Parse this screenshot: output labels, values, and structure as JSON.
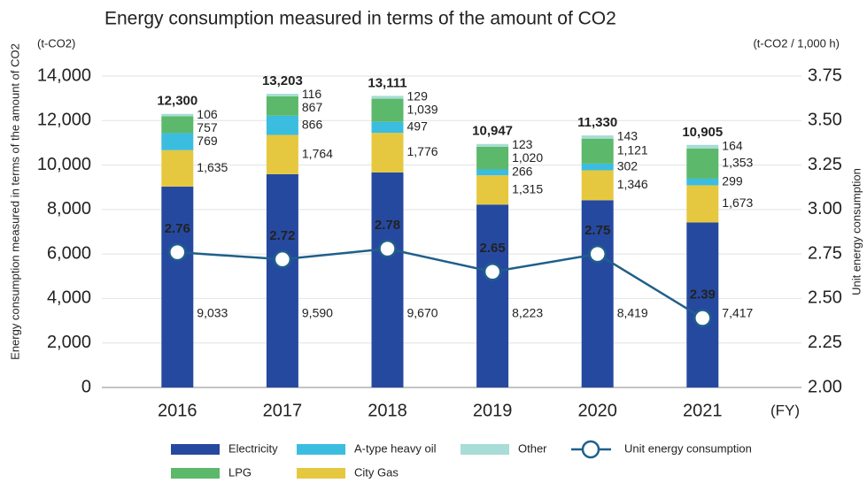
{
  "chart_data": {
    "type": "stacked-bar-line",
    "title": "Energy consumption measured in terms of the amount of CO2",
    "y_unit": "(t-CO2)",
    "y2_unit": "(t-CO2 / 1,000 h)",
    "x_unit": "(FY)",
    "ylabel": "Energy consumption measured in terms of the amount of CO2",
    "y2label": "Unit energy consumption",
    "categories": [
      "2016",
      "2017",
      "2018",
      "2019",
      "2020",
      "2021"
    ],
    "series": [
      {
        "name": "Electricity",
        "color": "#2649a0",
        "values": [
          9033,
          9590,
          9670,
          8223,
          8419,
          7417
        ],
        "value_labels": [
          "9,033",
          "9,590",
          "9,670",
          "8,223",
          "8,419",
          "7,417"
        ]
      },
      {
        "name": "City Gas",
        "color": "#e6c840",
        "values": [
          1635,
          1764,
          1776,
          1315,
          1346,
          1673
        ],
        "value_labels": [
          "1,635",
          "1,764",
          "1,776",
          "1,315",
          "1,346",
          "1,673"
        ]
      },
      {
        "name": "A-type heavy oil",
        "color": "#3bbde0",
        "values": [
          769,
          866,
          497,
          266,
          302,
          299
        ]
      },
      {
        "name": "LPG",
        "color": "#5cb86a",
        "values": [
          757,
          867,
          1039,
          1020,
          1121,
          1353
        ],
        "value_labels": [
          "757",
          "867",
          "1,039",
          "1,020",
          "1,121",
          "1,353"
        ]
      },
      {
        "name": "Other",
        "color": "#a8dcd6",
        "values": [
          106,
          116,
          129,
          123,
          143,
          164
        ]
      },
      {
        "name": "Unit energy consumption",
        "color": "#1f5f8b",
        "axis": "y2",
        "values": [
          2.76,
          2.72,
          2.78,
          2.65,
          2.75,
          2.39
        ]
      }
    ],
    "totals": {
      "values": [
        12300,
        13203,
        13111,
        10947,
        11330,
        10905
      ],
      "value_labels": [
        "12,300",
        "13,203",
        "13,111",
        "10,947",
        "11,330",
        "10,905"
      ]
    },
    "ylim": [
      0,
      14000
    ],
    "yticks": [
      0,
      {
        "value": 2000,
        "label": "2,000"
      },
      {
        "value": 4000,
        "label": "4,000"
      },
      {
        "value": 6000,
        "label": "6,000"
      },
      {
        "value": 8000,
        "label": "8,000"
      },
      {
        "value": 10000,
        "label": "10,000"
      },
      {
        "value": 12000,
        "label": "12,000"
      },
      {
        "value": 14000,
        "label": "14,000"
      }
    ],
    "y2lim": [
      2,
      3.75
    ],
    "y2ticks": [
      {
        "value": 2,
        "label": "2.00"
      },
      2.25,
      {
        "value": 2.5,
        "label": "2.50"
      },
      2.75,
      {
        "value": 3,
        "label": "3.00"
      },
      3.25,
      {
        "value": 3.5,
        "label": "3.50"
      },
      3.75
    ],
    "grid": true
  }
}
